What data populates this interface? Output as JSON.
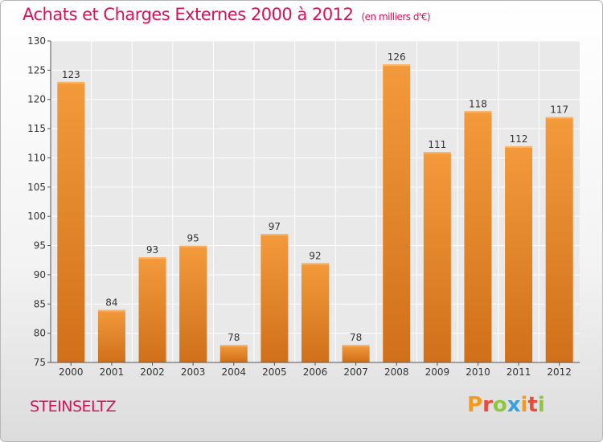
{
  "header": {
    "title": "Achats et Charges Externes 2000 à 2012",
    "subtitle": "(en milliers d'€)"
  },
  "footer": {
    "city": "STEINSELTZ",
    "logo_text": "Proxiti",
    "logo_colors": [
      "#f39a1e",
      "#e84c3d",
      "#8dc63f",
      "#3ba0e0",
      "#f39a1e",
      "#e84c3d",
      "#8dc63f"
    ]
  },
  "chart_data": {
    "type": "bar",
    "categories": [
      "2000",
      "2001",
      "2002",
      "2003",
      "2004",
      "2005",
      "2006",
      "2007",
      "2008",
      "2009",
      "2010",
      "2011",
      "2012"
    ],
    "values": [
      123,
      84,
      93,
      95,
      78,
      97,
      92,
      78,
      126,
      111,
      118,
      112,
      117
    ],
    "ylim": [
      75,
      130
    ],
    "yticks": [
      75,
      80,
      85,
      90,
      95,
      100,
      105,
      110,
      115,
      120,
      125,
      130
    ],
    "grid": true,
    "bar_color": "#f39a3c",
    "bar_color_dark": "#d0701a"
  }
}
